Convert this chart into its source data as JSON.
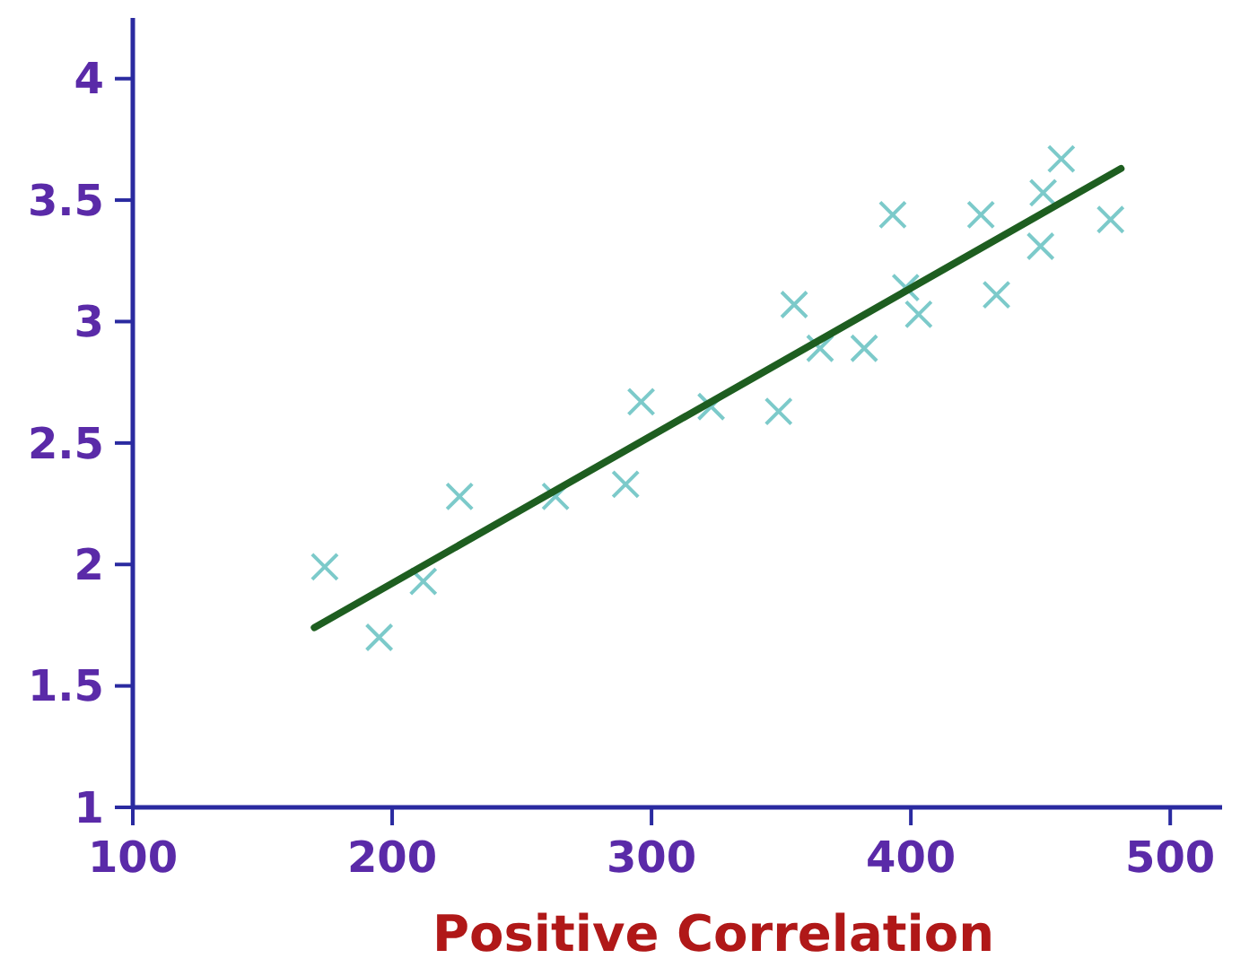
{
  "chart_data": {
    "type": "scatter",
    "xlabel": "Positive Correlation",
    "xlim": [
      100,
      520
    ],
    "ylim": [
      1,
      4.25
    ],
    "xticks": [
      100,
      200,
      300,
      400,
      500
    ],
    "yticks": [
      1,
      1.5,
      2,
      2.5,
      3,
      3.5,
      4
    ],
    "grid": false,
    "series": [
      {
        "marker": "cross",
        "color": "#7ccaca",
        "x": [
          174,
          195,
          212,
          226,
          263,
          290,
          296,
          323,
          349,
          355,
          365,
          382,
          393,
          398,
          403,
          427,
          433,
          450,
          451,
          458,
          477
        ],
        "values": [
          1.99,
          1.7,
          1.93,
          2.28,
          2.28,
          2.33,
          2.67,
          2.65,
          2.63,
          3.07,
          2.89,
          2.89,
          3.44,
          3.14,
          3.03,
          3.44,
          3.11,
          3.31,
          3.53,
          3.67,
          3.42
        ]
      },
      {
        "type": "line",
        "color": "#1e5e20",
        "x": [
          170,
          481
        ],
        "values": [
          1.74,
          3.63
        ],
        "line_style": "solid",
        "marker": "none"
      }
    ]
  }
}
